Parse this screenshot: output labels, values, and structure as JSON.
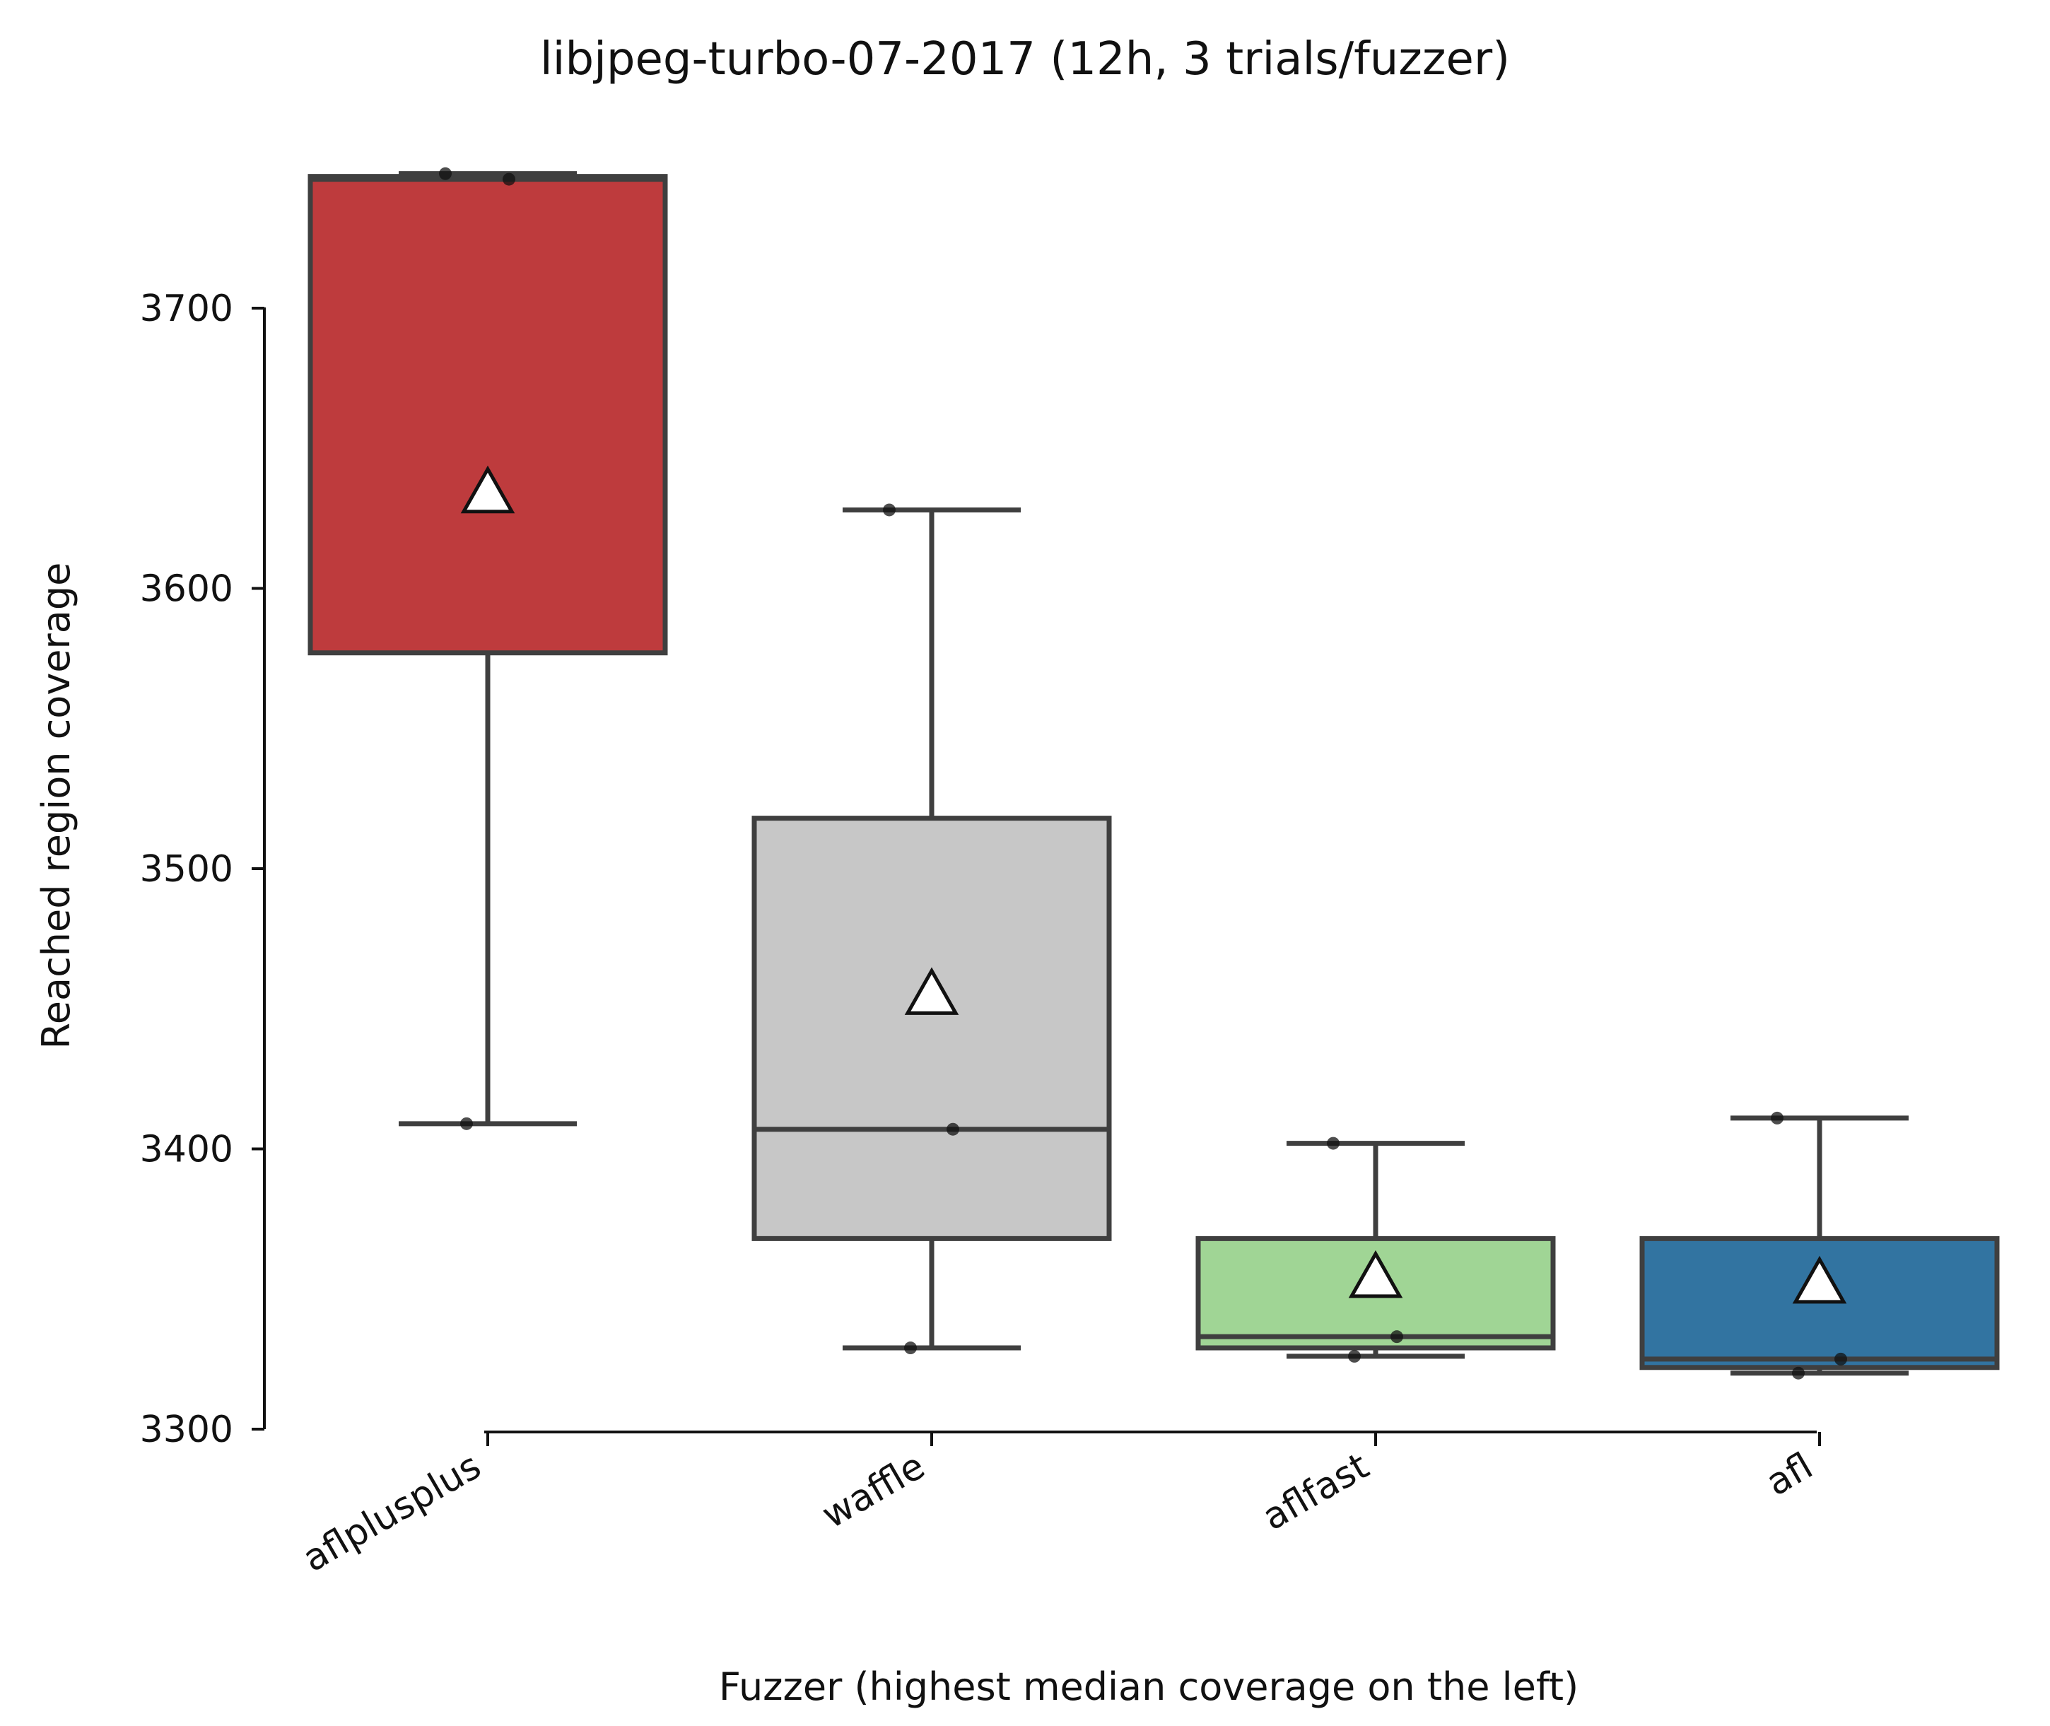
{
  "chart_data": {
    "type": "box",
    "title": "libjpeg-turbo-07-2017 (12h, 3 trials/fuzzer)",
    "xlabel": "Fuzzer (highest median coverage on the left)",
    "ylabel": "Reached region coverage",
    "ylim": [
      3300,
      3750
    ],
    "yticks": [
      "3300",
      "3400",
      "3500",
      "3600",
      "3700"
    ],
    "categories": [
      "aflplusplus",
      "waffle",
      "aflfast",
      "afl"
    ],
    "boxes": [
      {
        "name": "aflplusplus",
        "color": "#be3b3d",
        "min": 3409,
        "q1": 3577,
        "median": 3746,
        "q3": 3747,
        "max": 3748,
        "mean": 3634,
        "points": [
          3409,
          3746,
          3748
        ]
      },
      {
        "name": "waffle",
        "color": "#c7c7c7",
        "min": 3329,
        "q1": 3368,
        "median": 3407,
        "q3": 3518,
        "max": 3628,
        "mean": 3455,
        "points": [
          3329,
          3407,
          3628
        ]
      },
      {
        "name": "aflfast",
        "color": "#a0d595",
        "min": 3326,
        "q1": 3329,
        "median": 3333,
        "q3": 3368,
        "max": 3402,
        "mean": 3354,
        "points": [
          3326,
          3333,
          3402
        ]
      },
      {
        "name": "afl",
        "color": "#3274a1",
        "min": 3320,
        "q1": 3322,
        "median": 3325,
        "q3": 3368,
        "max": 3411,
        "mean": 3352,
        "points": [
          3320,
          3325,
          3411
        ]
      }
    ],
    "grid": false,
    "legend": "none"
  }
}
